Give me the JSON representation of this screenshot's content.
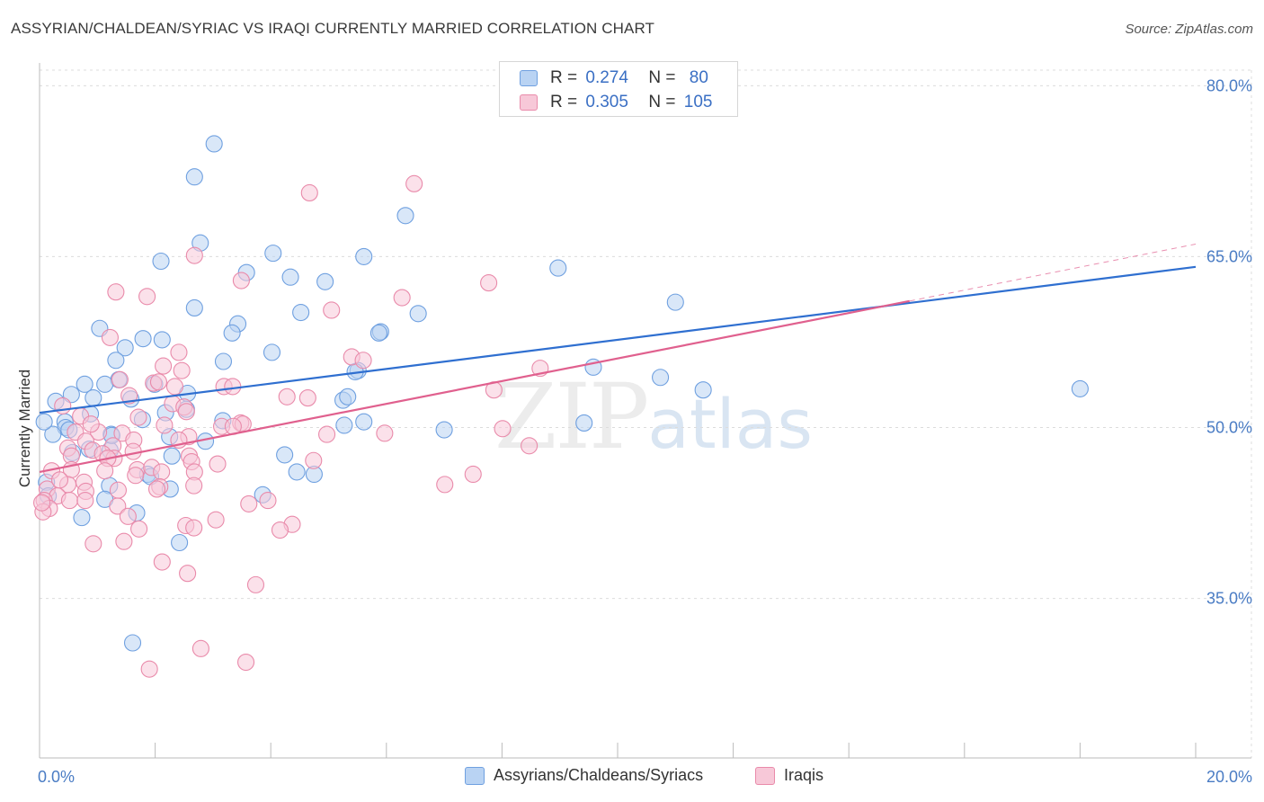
{
  "title": "ASSYRIAN/CHALDEAN/SYRIAC VS IRAQI CURRENTLY MARRIED CORRELATION CHART",
  "source": "Source: ZipAtlas.com",
  "watermark": {
    "zip": "ZIP",
    "atlas": "atlas"
  },
  "legend_top": {
    "rows": [
      {
        "r_label": "R =",
        "r_value": "0.274",
        "n_label": "N =",
        "n_value": "80"
      },
      {
        "r_label": "R =",
        "r_value": "0.305",
        "n_label": "N =",
        "n_value": "105"
      }
    ]
  },
  "chart_data": {
    "type": "scatter",
    "title": "ASSYRIAN/CHALDEAN/SYRIAC VS IRAQI CURRENTLY MARRIED CORRELATION CHART",
    "xlabel": "",
    "ylabel": "Currently Married",
    "xlim": [
      0,
      20
    ],
    "ylim": [
      21,
      82
    ],
    "x_tick_labels": [
      "0.0%",
      "20.0%"
    ],
    "y_ticks": [
      35,
      50,
      65,
      80
    ],
    "y_tick_labels": [
      "35.0%",
      "50.0%",
      "65.0%",
      "80.0%"
    ],
    "grid": true,
    "legend_position": "top-center",
    "series": [
      {
        "name": "Assyrians/Chaldeans/Syriacs",
        "color": "#6fa0e0",
        "fill": "#b9d3f3",
        "line_color": "#2f6fd0",
        "r": 0.274,
        "n": 80,
        "trend": {
          "x0": 0,
          "y0": 51.3,
          "x1": 20,
          "y1": 64.1
        },
        "points": [
          [
            3.02,
            74.9
          ],
          [
            2.68,
            72.0
          ],
          [
            6.33,
            68.6
          ],
          [
            2.78,
            66.2
          ],
          [
            4.04,
            65.3
          ],
          [
            2.1,
            64.6
          ],
          [
            5.61,
            65.0
          ],
          [
            8.97,
            64.0
          ],
          [
            3.58,
            63.6
          ],
          [
            4.34,
            63.2
          ],
          [
            4.94,
            62.8
          ],
          [
            2.68,
            60.5
          ],
          [
            4.52,
            60.1
          ],
          [
            6.55,
            60.0
          ],
          [
            11.0,
            61.0
          ],
          [
            1.04,
            58.7
          ],
          [
            3.43,
            59.1
          ],
          [
            3.33,
            58.3
          ],
          [
            5.9,
            58.4
          ],
          [
            5.87,
            58.3
          ],
          [
            1.79,
            57.8
          ],
          [
            2.12,
            57.7
          ],
          [
            1.48,
            57.0
          ],
          [
            4.02,
            56.6
          ],
          [
            1.32,
            55.9
          ],
          [
            3.18,
            55.8
          ],
          [
            5.51,
            55.0
          ],
          [
            5.46,
            54.9
          ],
          [
            9.58,
            55.3
          ],
          [
            10.74,
            54.4
          ],
          [
            1.37,
            54.2
          ],
          [
            0.78,
            53.8
          ],
          [
            1.13,
            53.8
          ],
          [
            1.99,
            53.8
          ],
          [
            11.48,
            53.3
          ],
          [
            18.0,
            53.4
          ],
          [
            2.56,
            53.0
          ],
          [
            0.55,
            52.9
          ],
          [
            0.93,
            52.6
          ],
          [
            0.28,
            52.3
          ],
          [
            1.58,
            52.5
          ],
          [
            5.25,
            52.4
          ],
          [
            5.33,
            52.7
          ],
          [
            2.18,
            51.3
          ],
          [
            2.54,
            51.6
          ],
          [
            0.88,
            51.2
          ],
          [
            0.44,
            50.5
          ],
          [
            0.45,
            50.0
          ],
          [
            0.51,
            49.8
          ],
          [
            1.78,
            50.7
          ],
          [
            3.17,
            50.6
          ],
          [
            5.61,
            50.5
          ],
          [
            5.27,
            50.2
          ],
          [
            9.42,
            50.4
          ],
          [
            7.0,
            49.8
          ],
          [
            0.23,
            49.4
          ],
          [
            1.24,
            49.4
          ],
          [
            2.25,
            49.2
          ],
          [
            2.87,
            48.8
          ],
          [
            0.86,
            48.1
          ],
          [
            1.22,
            48.0
          ],
          [
            0.57,
            47.8
          ],
          [
            2.29,
            47.5
          ],
          [
            4.24,
            47.6
          ],
          [
            4.45,
            46.1
          ],
          [
            4.75,
            45.9
          ],
          [
            1.87,
            45.9
          ],
          [
            1.92,
            45.7
          ],
          [
            2.26,
            44.6
          ],
          [
            1.21,
            44.9
          ],
          [
            1.13,
            43.7
          ],
          [
            3.86,
            44.1
          ],
          [
            0.73,
            42.1
          ],
          [
            1.68,
            42.5
          ],
          [
            0.08,
            50.5
          ],
          [
            0.12,
            45.2
          ],
          [
            0.15,
            44.0
          ],
          [
            2.42,
            39.9
          ],
          [
            1.61,
            31.1
          ],
          [
            1.25,
            49.3
          ]
        ]
      },
      {
        "name": "Iraqis",
        "color": "#e98aaa",
        "fill": "#f7c8d8",
        "line_color": "#e0608e",
        "r": 0.305,
        "n": 105,
        "trend": {
          "x0": 0,
          "y0": 46.1,
          "x1": 15.05,
          "y1": 61.1
        },
        "trend_dashed": {
          "x0": 15.05,
          "y0": 61.1,
          "x1": 20,
          "y1": 66.1
        },
        "points": [
          [
            6.48,
            71.4
          ],
          [
            4.67,
            70.6
          ],
          [
            2.68,
            65.1
          ],
          [
            3.49,
            62.9
          ],
          [
            7.77,
            62.7
          ],
          [
            1.32,
            61.9
          ],
          [
            1.86,
            61.5
          ],
          [
            6.27,
            61.4
          ],
          [
            5.05,
            60.3
          ],
          [
            1.22,
            57.9
          ],
          [
            2.41,
            56.6
          ],
          [
            5.4,
            56.2
          ],
          [
            5.6,
            55.9
          ],
          [
            2.14,
            55.4
          ],
          [
            2.46,
            55.0
          ],
          [
            8.66,
            55.2
          ],
          [
            1.39,
            54.2
          ],
          [
            1.97,
            53.9
          ],
          [
            2.34,
            53.6
          ],
          [
            3.19,
            53.6
          ],
          [
            3.34,
            53.6
          ],
          [
            7.86,
            53.3
          ],
          [
            4.28,
            52.7
          ],
          [
            4.64,
            52.6
          ],
          [
            1.55,
            52.8
          ],
          [
            2.3,
            52.1
          ],
          [
            2.5,
            51.8
          ],
          [
            0.4,
            51.9
          ],
          [
            2.54,
            51.4
          ],
          [
            0.71,
            51.0
          ],
          [
            1.71,
            50.9
          ],
          [
            2.16,
            50.2
          ],
          [
            3.15,
            50.1
          ],
          [
            3.48,
            50.4
          ],
          [
            3.52,
            50.3
          ],
          [
            3.35,
            50.1
          ],
          [
            0.62,
            49.6
          ],
          [
            1.02,
            49.6
          ],
          [
            1.43,
            49.5
          ],
          [
            4.97,
            49.4
          ],
          [
            5.97,
            49.5
          ],
          [
            8.01,
            49.9
          ],
          [
            2.58,
            49.2
          ],
          [
            2.41,
            48.9
          ],
          [
            0.8,
            48.8
          ],
          [
            1.63,
            48.9
          ],
          [
            1.27,
            48.4
          ],
          [
            0.49,
            48.2
          ],
          [
            0.92,
            48.0
          ],
          [
            1.09,
            47.7
          ],
          [
            1.62,
            47.9
          ],
          [
            1.29,
            47.3
          ],
          [
            2.59,
            47.5
          ],
          [
            2.63,
            47.0
          ],
          [
            8.47,
            48.4
          ],
          [
            0.55,
            47.5
          ],
          [
            1.18,
            47.3
          ],
          [
            1.13,
            46.2
          ],
          [
            1.69,
            46.3
          ],
          [
            1.94,
            46.5
          ],
          [
            2.11,
            46.1
          ],
          [
            1.66,
            45.8
          ],
          [
            0.55,
            46.3
          ],
          [
            0.21,
            46.2
          ],
          [
            2.68,
            46.1
          ],
          [
            3.08,
            46.8
          ],
          [
            4.74,
            47.1
          ],
          [
            0.77,
            45.2
          ],
          [
            0.49,
            45.0
          ],
          [
            1.36,
            44.5
          ],
          [
            2.08,
            44.8
          ],
          [
            2.03,
            44.6
          ],
          [
            2.67,
            44.9
          ],
          [
            0.8,
            44.4
          ],
          [
            0.13,
            44.6
          ],
          [
            0.31,
            44.0
          ],
          [
            0.52,
            43.6
          ],
          [
            0.79,
            43.6
          ],
          [
            1.35,
            43.1
          ],
          [
            3.62,
            43.3
          ],
          [
            3.95,
            43.6
          ],
          [
            7.01,
            45.0
          ],
          [
            7.5,
            45.9
          ],
          [
            0.08,
            43.6
          ],
          [
            0.17,
            42.9
          ],
          [
            1.53,
            42.2
          ],
          [
            1.72,
            41.1
          ],
          [
            2.53,
            41.4
          ],
          [
            2.67,
            41.2
          ],
          [
            3.05,
            41.9
          ],
          [
            4.37,
            41.5
          ],
          [
            4.16,
            41.0
          ],
          [
            0.93,
            39.8
          ],
          [
            1.46,
            40.0
          ],
          [
            2.12,
            38.2
          ],
          [
            3.74,
            36.2
          ],
          [
            0.06,
            42.6
          ],
          [
            0.04,
            43.4
          ],
          [
            2.79,
            30.6
          ],
          [
            3.57,
            29.4
          ],
          [
            1.9,
            28.8
          ],
          [
            2.56,
            37.2
          ],
          [
            2.06,
            54.0
          ],
          [
            0.89,
            50.3
          ],
          [
            0.35,
            45.4
          ]
        ]
      }
    ]
  },
  "legend_bottom": {
    "items": [
      "Assyrians/Chaldeans/Syriacs",
      "Iraqis"
    ]
  },
  "colors": {
    "blue_fill": "#b9d3f3",
    "blue_edge": "#6fa0e0",
    "pink_fill": "#f7c8d8",
    "pink_edge": "#e98aaa",
    "axis_label": "#4a7cc4",
    "grid": "#dcdcdc"
  }
}
